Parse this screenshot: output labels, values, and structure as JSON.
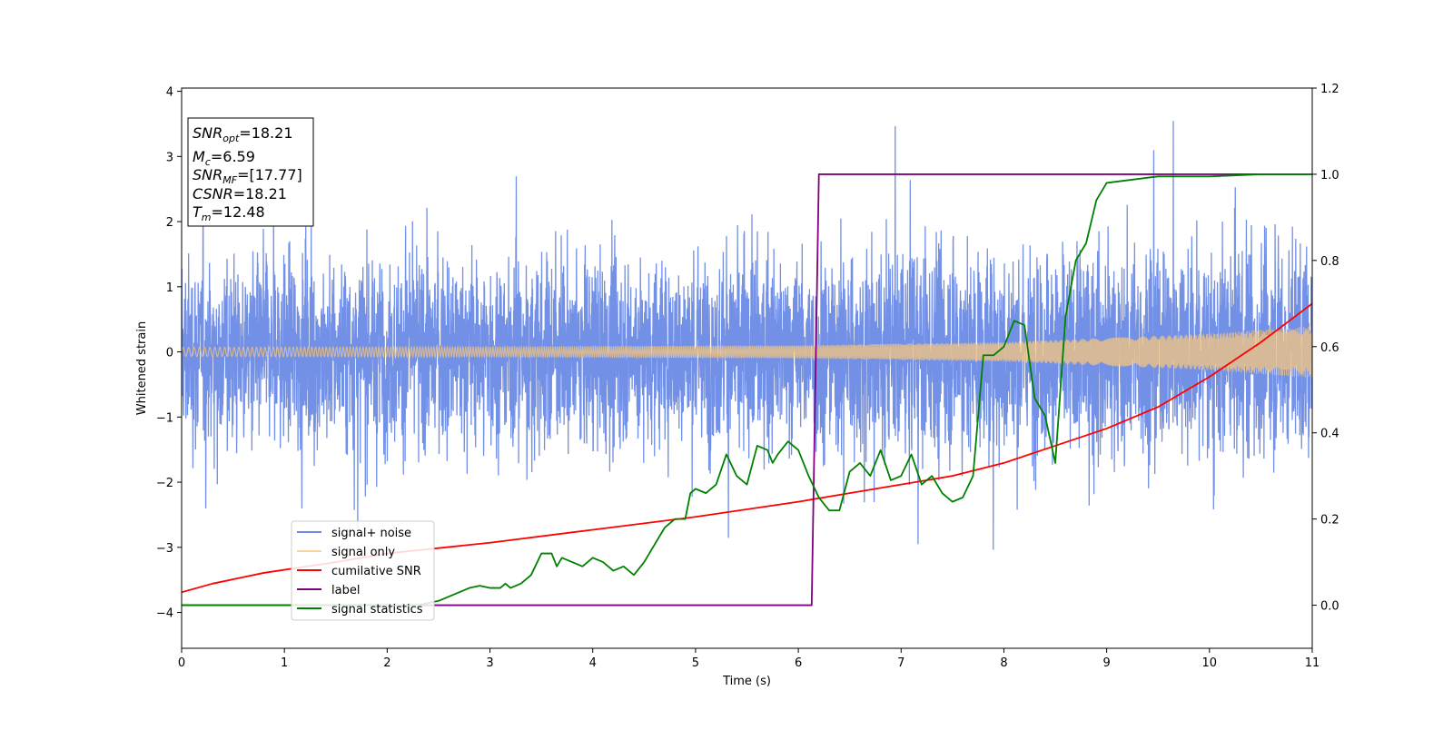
{
  "chart_data": {
    "type": "line",
    "xlabel": "Time (s)",
    "ylabel": "Whitened strain",
    "xlim": [
      0,
      11
    ],
    "ylim": [
      -4.55,
      4.05
    ],
    "ylim_right": [
      -0.1,
      1.2
    ],
    "x_ticks": [
      0,
      1,
      2,
      3,
      4,
      5,
      6,
      7,
      8,
      9,
      10,
      11
    ],
    "y_ticks": [
      -4,
      -3,
      -2,
      -1,
      0,
      1,
      2,
      3,
      4
    ],
    "y_ticks_right": [
      "0.0",
      "0.2",
      "0.4",
      "0.6",
      "0.8",
      "1.0",
      "1.2"
    ],
    "y_ticks_right_values": [
      0.0,
      0.2,
      0.4,
      0.6,
      0.8,
      1.0,
      1.2
    ],
    "grid": false,
    "legend_position": "lower-left",
    "info_box": {
      "snr_opt": {
        "label": "SNR",
        "sub": "opt",
        "value": "=18.21"
      },
      "mc": {
        "label": "M",
        "sub": "c",
        "value": "=6.59"
      },
      "snr_mf": {
        "label": "SNR",
        "sub": "MF",
        "value": "=[17.77]"
      },
      "csnr": {
        "label": "CSNR",
        "value": "=18.21"
      },
      "tm": {
        "label": "T",
        "sub": "m",
        "value": "=12.48"
      }
    },
    "series": [
      {
        "name": "signal+ noise",
        "color": "#6c8ae6",
        "axis": "left",
        "kind": "noise",
        "amplitude_envelope": {
          "x": [
            0,
            6.1,
            6.2,
            11
          ],
          "y": [
            1.6,
            1.6,
            1.75,
            1.8
          ]
        }
      },
      {
        "name": "signal only",
        "color": "#f5c77e",
        "axis": "left",
        "kind": "chirp",
        "amplitude_envelope": {
          "x": [
            0,
            3,
            6,
            8,
            10,
            11
          ],
          "y": [
            0.07,
            0.08,
            0.1,
            0.15,
            0.28,
            0.4
          ]
        }
      },
      {
        "name": "cumilative SNR",
        "color": "#ff0000",
        "axis": "right",
        "x": [
          0,
          0.3,
          0.8,
          1.5,
          2.0,
          3.0,
          4.0,
          5.0,
          6.0,
          6.5,
          7.0,
          7.5,
          8.0,
          8.5,
          9.0,
          9.5,
          10.0,
          10.5,
          11.0
        ],
        "y": [
          0.03,
          0.05,
          0.075,
          0.1,
          0.12,
          0.145,
          0.175,
          0.205,
          0.24,
          0.26,
          0.28,
          0.3,
          0.33,
          0.37,
          0.41,
          0.46,
          0.53,
          0.61,
          0.7
        ]
      },
      {
        "name": "label",
        "color": "#800080",
        "axis": "right",
        "x": [
          0,
          6.13,
          6.2,
          11.0
        ],
        "y": [
          0.0,
          0.0,
          1.0,
          1.0
        ]
      },
      {
        "name": "signal statistics",
        "color": "#008000",
        "axis": "right",
        "x": [
          0,
          1.0,
          2.0,
          2.3,
          2.5,
          2.6,
          2.7,
          2.8,
          2.9,
          3.0,
          3.1,
          3.15,
          3.2,
          3.3,
          3.4,
          3.5,
          3.6,
          3.65,
          3.7,
          3.8,
          3.9,
          4.0,
          4.1,
          4.2,
          4.3,
          4.4,
          4.5,
          4.6,
          4.7,
          4.8,
          4.9,
          4.95,
          5.0,
          5.1,
          5.2,
          5.3,
          5.4,
          5.5,
          5.6,
          5.7,
          5.75,
          5.8,
          5.9,
          6.0,
          6.1,
          6.2,
          6.3,
          6.4,
          6.5,
          6.6,
          6.7,
          6.8,
          6.9,
          7.0,
          7.1,
          7.2,
          7.3,
          7.4,
          7.5,
          7.6,
          7.7,
          7.8,
          7.9,
          8.0,
          8.1,
          8.2,
          8.3,
          8.4,
          8.5,
          8.6,
          8.7,
          8.8,
          8.9,
          9.0,
          9.5,
          10.0,
          10.5,
          11.0
        ],
        "y": [
          0.0,
          0.0,
          0.0,
          0.0,
          0.01,
          0.02,
          0.03,
          0.04,
          0.045,
          0.04,
          0.04,
          0.05,
          0.04,
          0.05,
          0.07,
          0.12,
          0.12,
          0.09,
          0.11,
          0.1,
          0.09,
          0.11,
          0.1,
          0.08,
          0.09,
          0.07,
          0.1,
          0.14,
          0.18,
          0.2,
          0.2,
          0.26,
          0.27,
          0.26,
          0.28,
          0.35,
          0.3,
          0.28,
          0.37,
          0.36,
          0.33,
          0.35,
          0.38,
          0.36,
          0.3,
          0.25,
          0.22,
          0.22,
          0.31,
          0.33,
          0.3,
          0.36,
          0.29,
          0.3,
          0.35,
          0.28,
          0.3,
          0.26,
          0.24,
          0.25,
          0.3,
          0.58,
          0.58,
          0.6,
          0.66,
          0.65,
          0.48,
          0.44,
          0.33,
          0.67,
          0.8,
          0.84,
          0.94,
          0.98,
          0.995,
          0.995,
          1.0,
          1.0
        ]
      }
    ]
  }
}
